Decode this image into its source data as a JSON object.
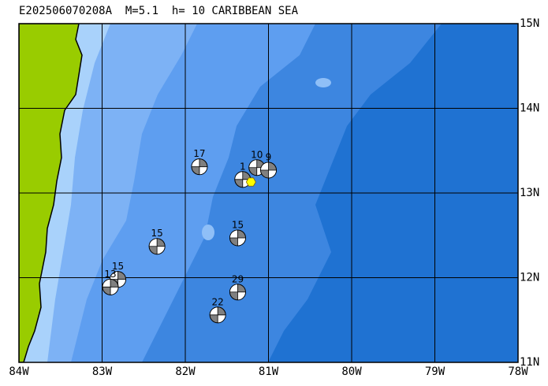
{
  "chart_data": {
    "type": "map",
    "title": "E202506070208A  M=5.1  h= 10 CARIBBEAN SEA",
    "xlim": [
      -84,
      -78
    ],
    "ylim": [
      11,
      15
    ],
    "xticks": [
      {
        "value": -84,
        "label": "84W"
      },
      {
        "value": -83,
        "label": "83W"
      },
      {
        "value": -82,
        "label": "82W"
      },
      {
        "value": -81,
        "label": "81W"
      },
      {
        "value": -80,
        "label": "80W"
      },
      {
        "value": -79,
        "label": "79W"
      },
      {
        "value": -78,
        "label": "78W"
      }
    ],
    "yticks": [
      {
        "value": 11,
        "label": "11N"
      },
      {
        "value": 12,
        "label": "12N"
      },
      {
        "value": 13,
        "label": "13N"
      },
      {
        "value": 14,
        "label": "14N"
      },
      {
        "value": 15,
        "label": "15N"
      }
    ],
    "grid": true,
    "epicenter": {
      "lon": -81.21,
      "lat": 13.13,
      "color": "#ffff00"
    },
    "events": [
      {
        "label": "17",
        "lon": -81.83,
        "lat": 13.31
      },
      {
        "label": "1",
        "lon": -81.31,
        "lat": 13.16
      },
      {
        "label": "10",
        "lon": -81.14,
        "lat": 13.3
      },
      {
        "label": "9",
        "lon": -81.0,
        "lat": 13.27
      },
      {
        "label": "15",
        "lon": -81.37,
        "lat": 12.47
      },
      {
        "label": "15",
        "lon": -82.34,
        "lat": 12.37
      },
      {
        "label": "15",
        "lon": -82.81,
        "lat": 11.98
      },
      {
        "label": "13",
        "lon": -82.9,
        "lat": 11.89
      },
      {
        "label": "29",
        "lon": -81.37,
        "lat": 11.83
      },
      {
        "label": "22",
        "lon": -81.61,
        "lat": 11.56
      }
    ]
  }
}
